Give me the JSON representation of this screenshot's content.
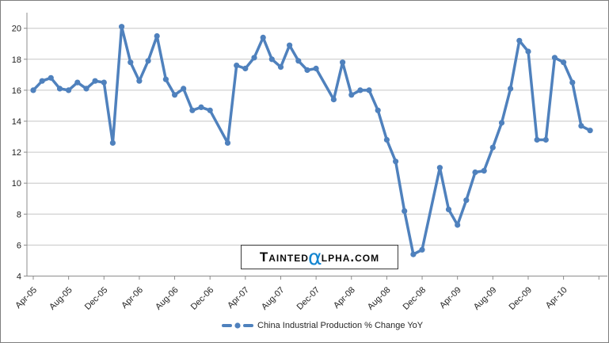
{
  "chart_data": {
    "type": "line",
    "grid": "horizontal",
    "legend_position": "bottom-center",
    "ylim": [
      4,
      20
    ],
    "y_tick_step": 2,
    "y_tick_labels": [
      20,
      18,
      16,
      14,
      12,
      10,
      8,
      6,
      4
    ],
    "x_tick_labels": [
      "Apr-05",
      "Aug-05",
      "Dec-05",
      "Apr-06",
      "Aug-06",
      "Dec-06",
      "Apr-07",
      "Aug-07",
      "Dec-07",
      "Apr-08",
      "Aug-08",
      "Dec-08",
      "Apr-09",
      "Aug-09",
      "Dec-09",
      "Apr-10"
    ],
    "series": [
      {
        "name": "China Industrial Production % Change YoY",
        "color": "#4F81BD",
        "marker": "circle",
        "x": [
          "Apr-05",
          "May-05",
          "Jun-05",
          "Jul-05",
          "Aug-05",
          "Sep-05",
          "Oct-05",
          "Nov-05",
          "Dec-05",
          "Jan-06",
          "Feb-06",
          "Mar-06",
          "Apr-06",
          "May-06",
          "Jun-06",
          "Jul-06",
          "Aug-06",
          "Sep-06",
          "Oct-06",
          "Nov-06",
          "Dec-06",
          "Feb-07",
          "Mar-07",
          "Apr-07",
          "May-07",
          "Jun-07",
          "Jul-07",
          "Aug-07",
          "Sep-07",
          "Oct-07",
          "Nov-07",
          "Dec-07",
          "Feb-08",
          "Mar-08",
          "Apr-08",
          "May-08",
          "Jun-08",
          "Jul-08",
          "Aug-08",
          "Sep-08",
          "Oct-08",
          "Nov-08",
          "Dec-08",
          "Feb-09",
          "Mar-09",
          "Apr-09",
          "May-09",
          "Jun-09",
          "Jul-09",
          "Aug-09",
          "Sep-09",
          "Oct-09",
          "Nov-09",
          "Dec-09",
          "Jan-10",
          "Feb-10",
          "Mar-10",
          "Apr-10",
          "May-10",
          "Jun-10",
          "Jul-10"
        ],
        "values": [
          16.0,
          16.6,
          16.8,
          16.1,
          16.0,
          16.5,
          16.1,
          16.6,
          16.5,
          12.6,
          20.1,
          17.8,
          16.6,
          17.9,
          19.5,
          16.7,
          15.7,
          16.1,
          14.7,
          14.9,
          14.7,
          12.6,
          17.6,
          17.4,
          18.1,
          19.4,
          18.0,
          17.5,
          18.9,
          17.9,
          17.3,
          17.4,
          15.4,
          17.8,
          15.7,
          16.0,
          16.0,
          14.7,
          12.8,
          11.4,
          8.2,
          5.4,
          5.7,
          11.0,
          8.3,
          7.3,
          8.9,
          10.7,
          10.8,
          12.3,
          13.9,
          16.1,
          19.2,
          18.5,
          12.8,
          12.8,
          18.1,
          17.8,
          16.5,
          13.7,
          13.4
        ]
      }
    ]
  },
  "legend": {
    "label": "China Industrial Production % Change YoY"
  },
  "watermark": {
    "left": "Tainted",
    "alpha": "α",
    "right": "lpha.com",
    "alpha_color": "#1586d0"
  },
  "colors": {
    "line": "#4F81BD",
    "gridline": "#c6c6c6",
    "axis": "#8c8c8c",
    "tick_label": "#1f1f1f",
    "frame_border": "#7f7f7f",
    "background": "#ffffff"
  }
}
